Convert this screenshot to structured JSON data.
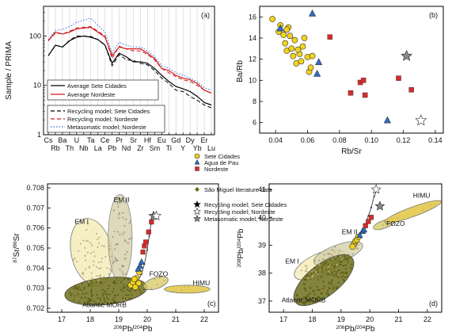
{
  "chart_data": [
    {
      "type": "line",
      "panel": "(a)",
      "ylabel": "Sample / PRIMA",
      "yscale": "log",
      "ylim": [
        1,
        400
      ],
      "yticks": [
        {
          "v": 1,
          "label": "1"
        },
        {
          "v": 10,
          "label": "10"
        },
        {
          "v": 100,
          "label": "100"
        }
      ],
      "categories": [
        "Cs",
        "Rb",
        "Ba",
        "Th",
        "U",
        "Nb",
        "Ta",
        "La",
        "Ce",
        "Pb",
        "Pr",
        "Nd",
        "Sr",
        "Zr",
        "Hf",
        "Sm",
        "Eu",
        "Ti",
        "Gd",
        "Y",
        "Dy",
        "Yb",
        "Er",
        "Lu"
      ],
      "series": [
        {
          "name": "Average Sete Cidades",
          "color": "#000000",
          "dash": "",
          "values": [
            40,
            65,
            60,
            80,
            95,
            100,
            95,
            85,
            65,
            28,
            45,
            38,
            30,
            30,
            28,
            22,
            16,
            12,
            9.5,
            8.5,
            7.5,
            6,
            4.5,
            4.0
          ]
        },
        {
          "name": "Average Nordeste",
          "color": "#d11a1a",
          "dash": "",
          "values": [
            80,
            120,
            110,
            120,
            140,
            145,
            150,
            120,
            95,
            40,
            60,
            55,
            55,
            55,
            45,
            35,
            22,
            20,
            16,
            14,
            13,
            11,
            8,
            7
          ]
        },
        {
          "name": "Recycling model; Sete Cidades",
          "color": "#000000",
          "dash": "5,3",
          "values": [
            40,
            65,
            60,
            82,
            100,
            100,
            98,
            85,
            66,
            25,
            42,
            33,
            32,
            28,
            26,
            20,
            14,
            11,
            8,
            7.5,
            6,
            5,
            4,
            3.5
          ]
        },
        {
          "name": "Recycling model; Nordeste",
          "color": "#d11a1a",
          "dash": "5,3",
          "values": [
            80,
            115,
            110,
            125,
            145,
            150,
            155,
            125,
            100,
            35,
            62,
            55,
            50,
            50,
            42,
            33,
            22,
            18,
            15,
            13,
            12,
            10,
            8,
            7
          ]
        },
        {
          "name": "Metasomatic model; Nordeste",
          "color": "#3a6fd8",
          "dash": "1.5,2",
          "values": [
            85,
            130,
            135,
            155,
            190,
            210,
            230,
            165,
            120,
            45,
            75,
            65,
            60,
            60,
            50,
            38,
            25,
            22,
            18,
            16,
            14,
            12,
            9,
            8
          ]
        }
      ]
    },
    {
      "type": "scatter",
      "panel": "(b)",
      "xlabel": "Rb/Sr",
      "ylabel": "Ba/Rb",
      "xlim": [
        0.03,
        0.145
      ],
      "ylim": [
        5,
        17
      ],
      "xticks": [
        "0.04",
        "0.06",
        "0.08",
        "0.10",
        "0.12",
        "0.14"
      ],
      "yticks": [
        "6",
        "8",
        "10",
        "12",
        "14",
        "16"
      ],
      "series": [
        {
          "name": "Sete Cidades",
          "marker": "circle",
          "color": "#f2d21b",
          "points": [
            [
              0.038,
              15.8
            ],
            [
              0.042,
              14.6
            ],
            [
              0.043,
              15.2
            ],
            [
              0.045,
              14.3
            ],
            [
              0.046,
              13.5
            ],
            [
              0.047,
              12.8
            ],
            [
              0.048,
              15.0
            ],
            [
              0.049,
              14.2
            ],
            [
              0.05,
              13.0
            ],
            [
              0.051,
              12.3
            ],
            [
              0.052,
              13.8
            ],
            [
              0.053,
              11.6
            ],
            [
              0.055,
              12.5
            ],
            [
              0.056,
              11.8
            ],
            [
              0.057,
              13.2
            ],
            [
              0.058,
              14.0
            ],
            [
              0.06,
              12.2
            ],
            [
              0.061,
              10.8
            ],
            [
              0.062,
              11.2
            ],
            [
              0.063,
              12.3
            ],
            [
              0.047,
              14.8
            ],
            [
              0.054,
              12.9
            ]
          ]
        },
        {
          "name": "Agua de Pau",
          "marker": "triangle",
          "color": "#2f6bbf",
          "points": [
            [
              0.043,
              14.9
            ],
            [
              0.063,
              16.3
            ],
            [
              0.066,
              10.6
            ],
            [
              0.067,
              11.7
            ],
            [
              0.11,
              6.2
            ]
          ]
        },
        {
          "name": "Nordeste",
          "marker": "square",
          "color": "#d62a2a",
          "points": [
            [
              0.074,
              14.1
            ],
            [
              0.087,
              8.8
            ],
            [
              0.093,
              9.8
            ],
            [
              0.095,
              10.0
            ],
            [
              0.096,
              8.6
            ],
            [
              0.117,
              10.2
            ],
            [
              0.125,
              9.1
            ]
          ]
        },
        {
          "name": "Recycling model; Nordeste",
          "marker": "star-open",
          "color": "#ffffff",
          "points": [
            [
              0.131,
              6.2
            ]
          ]
        },
        {
          "name": "Metasomatic model; Nordeste",
          "marker": "star-grey",
          "color": "#8a8a8a",
          "points": [
            [
              0.122,
              12.3
            ]
          ]
        }
      ]
    },
    {
      "type": "scatter",
      "panel": "(c)",
      "xlabel": "206Pb/204Pb",
      "ylabel": "87Sr/86Sr",
      "xlim": [
        16.5,
        22.5
      ],
      "ylim": [
        0.7018,
        0.7082
      ],
      "xticks": [
        "17",
        "18",
        "19",
        "20",
        "21",
        "22"
      ],
      "yticks": [
        "0.702",
        "0.703",
        "0.704",
        "0.705",
        "0.706",
        "0.707",
        "0.708"
      ],
      "fields": [
        "EM I",
        "EM II",
        "FOZO",
        "HIMU",
        "Atlantic MORB"
      ]
    },
    {
      "type": "scatter",
      "panel": "(d)",
      "xlabel": "206Pb/204Pb",
      "ylabel": "208Pb/204Pb",
      "xlim": [
        16.5,
        22.5
      ],
      "ylim": [
        36.6,
        41.2
      ],
      "xticks": [
        "17",
        "18",
        "19",
        "20",
        "21",
        "22"
      ],
      "yticks": [
        "37",
        "38",
        "39",
        "40",
        "41"
      ],
      "fields": [
        "EM I",
        "EM II",
        "FOZO",
        "HIMU",
        "Atlantic MORB"
      ]
    }
  ],
  "legend_center": [
    {
      "label": "Sete Cidades",
      "marker": "circle"
    },
    {
      "label": "Agua de Pau",
      "marker": "triangle"
    },
    {
      "label": "Nordeste",
      "marker": "square"
    },
    {
      "label": "São Miguel literature data",
      "marker": "diamond"
    },
    {
      "label": "Recycling model; Sete Cidades",
      "marker": "star-black"
    },
    {
      "label": "Recycling model; Nordeste",
      "marker": "star-open"
    },
    {
      "label": "Metasomatic model; Nordeste",
      "marker": "star-grey"
    }
  ],
  "colors": {
    "yellow": "#f2d21b",
    "blue": "#2f6bbf",
    "red": "#d62a2a",
    "olive": "#6b6b16",
    "grey": "#8a8a8a"
  }
}
